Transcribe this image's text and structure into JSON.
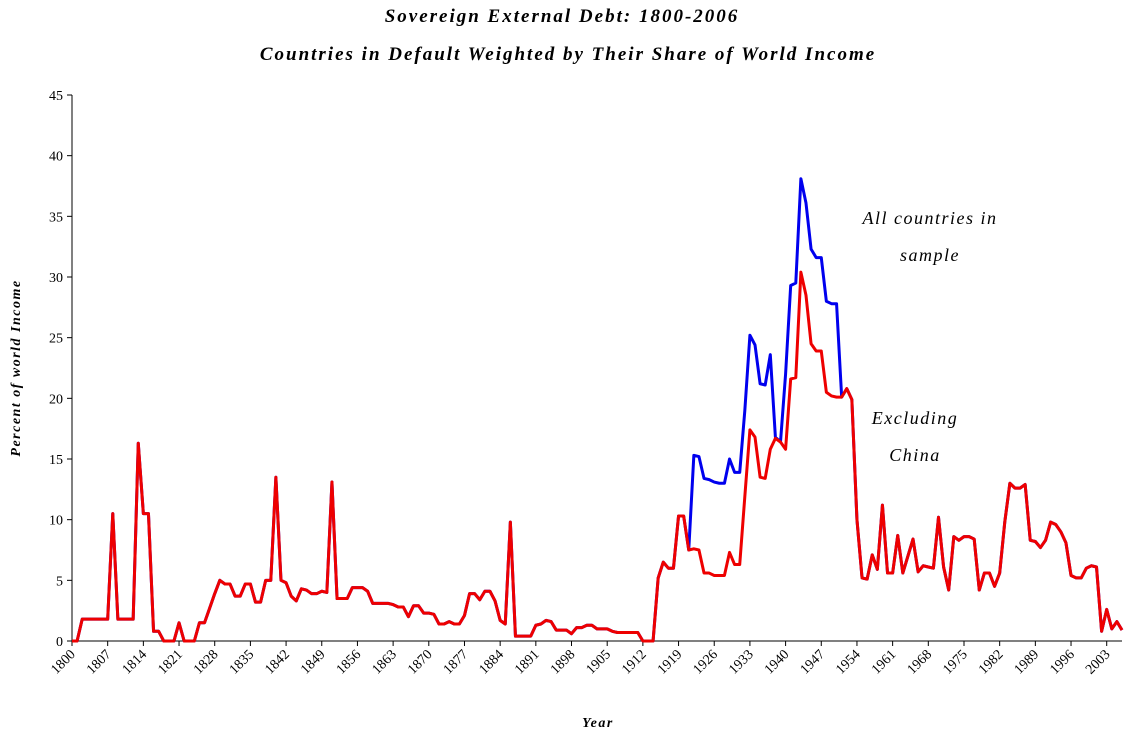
{
  "chart_data": {
    "type": "line",
    "title": "Sovereign External Debt: 1800-2006",
    "subtitle": "Countries in Default Weighted by Their Share of World Income",
    "y_label": "Percent of world Income",
    "x_label": "Year",
    "xlim": [
      1800,
      2006
    ],
    "ylim": [
      0,
      45
    ],
    "yticks": [
      0,
      5,
      10,
      15,
      20,
      25,
      30,
      35,
      40,
      45
    ],
    "xticks": [
      1800,
      1807,
      1814,
      1821,
      1828,
      1835,
      1842,
      1849,
      1856,
      1863,
      1870,
      1877,
      1884,
      1891,
      1898,
      1905,
      1912,
      1919,
      1926,
      1933,
      1940,
      1947,
      1954,
      1961,
      1968,
      1975,
      1982,
      1989,
      1996,
      2003
    ],
    "x": [
      1800,
      1801,
      1802,
      1803,
      1804,
      1805,
      1806,
      1807,
      1808,
      1809,
      1810,
      1811,
      1812,
      1813,
      1814,
      1815,
      1816,
      1817,
      1818,
      1819,
      1820,
      1821,
      1822,
      1823,
      1824,
      1825,
      1826,
      1827,
      1828,
      1829,
      1830,
      1831,
      1832,
      1833,
      1834,
      1835,
      1836,
      1837,
      1838,
      1839,
      1840,
      1841,
      1842,
      1843,
      1844,
      1845,
      1846,
      1847,
      1848,
      1849,
      1850,
      1851,
      1852,
      1853,
      1854,
      1855,
      1856,
      1857,
      1858,
      1859,
      1860,
      1861,
      1862,
      1863,
      1864,
      1865,
      1866,
      1867,
      1868,
      1869,
      1870,
      1871,
      1872,
      1873,
      1874,
      1875,
      1876,
      1877,
      1878,
      1879,
      1880,
      1881,
      1882,
      1883,
      1884,
      1885,
      1886,
      1887,
      1888,
      1889,
      1890,
      1891,
      1892,
      1893,
      1894,
      1895,
      1896,
      1897,
      1898,
      1899,
      1900,
      1901,
      1902,
      1903,
      1904,
      1905,
      1906,
      1907,
      1908,
      1909,
      1910,
      1911,
      1912,
      1913,
      1914,
      1915,
      1916,
      1917,
      1918,
      1919,
      1920,
      1921,
      1922,
      1923,
      1924,
      1925,
      1926,
      1927,
      1928,
      1929,
      1930,
      1931,
      1932,
      1933,
      1934,
      1935,
      1936,
      1937,
      1938,
      1939,
      1940,
      1941,
      1942,
      1943,
      1944,
      1945,
      1946,
      1947,
      1948,
      1949,
      1950,
      1951,
      1952,
      1953,
      1954,
      1955,
      1956,
      1957,
      1958,
      1959,
      1960,
      1961,
      1962,
      1963,
      1964,
      1965,
      1966,
      1967,
      1968,
      1969,
      1970,
      1971,
      1972,
      1973,
      1974,
      1975,
      1976,
      1977,
      1978,
      1979,
      1980,
      1981,
      1982,
      1983,
      1984,
      1985,
      1986,
      1987,
      1988,
      1989,
      1990,
      1991,
      1992,
      1993,
      1994,
      1995,
      1996,
      1997,
      1998,
      1999,
      2000,
      2001,
      2002,
      2003,
      2004,
      2005,
      2006
    ],
    "series": [
      {
        "name": "All countries in sample",
        "color": "#0000ee",
        "values": [
          0,
          0,
          1.8,
          1.8,
          1.8,
          1.8,
          1.8,
          1.8,
          10.5,
          1.8,
          1.8,
          1.8,
          1.8,
          16.3,
          10.5,
          10.5,
          0.8,
          0.8,
          0,
          0,
          0,
          1.5,
          0,
          0,
          0,
          1.5,
          1.5,
          2.7,
          3.9,
          5.0,
          4.7,
          4.7,
          3.7,
          3.7,
          4.7,
          4.7,
          3.2,
          3.2,
          5.0,
          5.0,
          13.5,
          5.0,
          4.8,
          3.7,
          3.3,
          4.3,
          4.2,
          3.9,
          3.9,
          4.1,
          4.0,
          13.1,
          3.5,
          3.5,
          3.5,
          4.4,
          4.4,
          4.4,
          4.1,
          3.1,
          3.1,
          3.1,
          3.1,
          3.0,
          2.8,
          2.8,
          2.0,
          2.9,
          2.9,
          2.3,
          2.3,
          2.2,
          1.4,
          1.4,
          1.6,
          1.4,
          1.4,
          2.1,
          3.9,
          3.9,
          3.4,
          4.1,
          4.1,
          3.3,
          1.7,
          1.4,
          9.8,
          0.4,
          0.4,
          0.4,
          0.4,
          1.3,
          1.4,
          1.7,
          1.6,
          0.9,
          0.9,
          0.9,
          0.6,
          1.1,
          1.1,
          1.3,
          1.3,
          1.0,
          1.0,
          1.0,
          0.8,
          0.7,
          0.7,
          0.7,
          0.7,
          0.7,
          0,
          0,
          0,
          5.2,
          6.5,
          6.0,
          6.0,
          10.3,
          10.3,
          7.5,
          15.3,
          15.2,
          13.4,
          13.3,
          13.1,
          13.0,
          13.0,
          15.0,
          13.9,
          13.9,
          19.0,
          25.2,
          24.4,
          21.2,
          21.1,
          23.6,
          16.8,
          16.4,
          22.0,
          29.3,
          29.5,
          38.1,
          36.1,
          32.3,
          31.6,
          31.6,
          28.0,
          27.8,
          27.8,
          20.1,
          20.8,
          19.9,
          10.0,
          5.2,
          5.1,
          7.1,
          5.9,
          11.2,
          5.6,
          5.6,
          8.7,
          5.6,
          7.0,
          8.4,
          5.7,
          6.2,
          6.1,
          6.0,
          10.2,
          6.1,
          4.2,
          8.6,
          8.3,
          8.6,
          8.6,
          8.4,
          4.2,
          5.6,
          5.6,
          4.5,
          5.6,
          9.8,
          13.0,
          12.6,
          12.6,
          12.9,
          8.3,
          8.2,
          7.7,
          8.3,
          9.8,
          9.6,
          9.0,
          8.1,
          5.4,
          5.2,
          5.2,
          6.0,
          6.2,
          6.1,
          0.8,
          2.6,
          1.0,
          1.6,
          0.9
        ]
      },
      {
        "name": "Excluding China",
        "color": "#ee0000",
        "values": [
          0,
          0,
          1.8,
          1.8,
          1.8,
          1.8,
          1.8,
          1.8,
          10.5,
          1.8,
          1.8,
          1.8,
          1.8,
          16.3,
          10.5,
          10.5,
          0.8,
          0.8,
          0,
          0,
          0,
          1.5,
          0,
          0,
          0,
          1.5,
          1.5,
          2.7,
          3.9,
          5.0,
          4.7,
          4.7,
          3.7,
          3.7,
          4.7,
          4.7,
          3.2,
          3.2,
          5.0,
          5.0,
          13.5,
          5.0,
          4.8,
          3.7,
          3.3,
          4.3,
          4.2,
          3.9,
          3.9,
          4.1,
          4.0,
          13.1,
          3.5,
          3.5,
          3.5,
          4.4,
          4.4,
          4.4,
          4.1,
          3.1,
          3.1,
          3.1,
          3.1,
          3.0,
          2.8,
          2.8,
          2.0,
          2.9,
          2.9,
          2.3,
          2.3,
          2.2,
          1.4,
          1.4,
          1.6,
          1.4,
          1.4,
          2.1,
          3.9,
          3.9,
          3.4,
          4.1,
          4.1,
          3.3,
          1.7,
          1.4,
          9.8,
          0.4,
          0.4,
          0.4,
          0.4,
          1.3,
          1.4,
          1.7,
          1.6,
          0.9,
          0.9,
          0.9,
          0.6,
          1.1,
          1.1,
          1.3,
          1.3,
          1.0,
          1.0,
          1.0,
          0.8,
          0.7,
          0.7,
          0.7,
          0.7,
          0.7,
          0,
          0,
          0,
          5.2,
          6.5,
          6.0,
          6.0,
          10.3,
          10.3,
          7.5,
          7.6,
          7.5,
          5.6,
          5.6,
          5.4,
          5.4,
          5.4,
          7.3,
          6.3,
          6.3,
          11.9,
          17.4,
          16.8,
          13.5,
          13.4,
          15.8,
          16.7,
          16.4,
          15.8,
          21.6,
          21.7,
          30.4,
          28.5,
          24.5,
          23.9,
          23.9,
          20.5,
          20.2,
          20.1,
          20.1,
          20.8,
          19.9,
          10.0,
          5.2,
          5.1,
          7.1,
          5.9,
          11.2,
          5.6,
          5.6,
          8.7,
          5.6,
          7.0,
          8.4,
          5.7,
          6.2,
          6.1,
          6.0,
          10.2,
          6.1,
          4.2,
          8.6,
          8.3,
          8.6,
          8.6,
          8.4,
          4.2,
          5.6,
          5.6,
          4.5,
          5.6,
          9.8,
          13.0,
          12.6,
          12.6,
          12.9,
          8.3,
          8.2,
          7.7,
          8.3,
          9.8,
          9.6,
          9.0,
          8.1,
          5.4,
          5.2,
          5.2,
          6.0,
          6.2,
          6.1,
          0.8,
          2.6,
          1.0,
          1.6,
          0.9
        ]
      }
    ],
    "annotations": [
      {
        "lines": [
          "All countries in",
          "sample"
        ],
        "color": "#3355ee"
      },
      {
        "lines": [
          "Excluding",
          "China"
        ],
        "color": "#ee2222"
      }
    ]
  }
}
